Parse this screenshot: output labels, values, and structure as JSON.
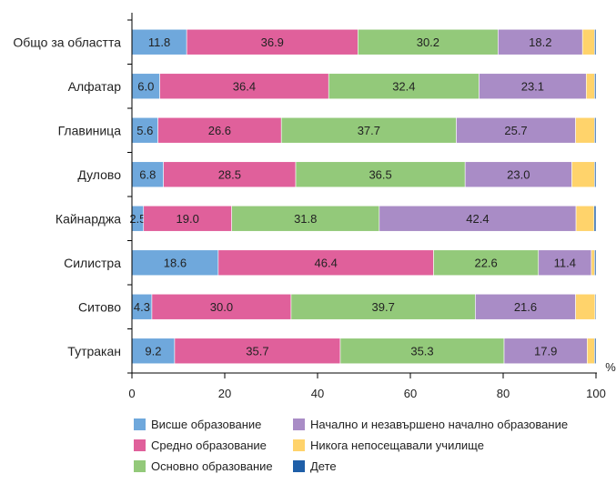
{
  "chart_data": {
    "type": "bar",
    "orientation": "horizontal",
    "stacked": true,
    "unit": "%",
    "categories": [
      "Общо за областта",
      "Алфатар",
      "Главиница",
      "Дулово",
      "Кайнарджа",
      "Силистра",
      "Ситово",
      "Тутракан"
    ],
    "series": [
      {
        "name": "Висше образование",
        "color": "#6fa8dc",
        "values": [
          11.8,
          6.0,
          5.6,
          6.8,
          2.5,
          18.6,
          4.3,
          9.2
        ],
        "labels": [
          "11.8",
          "6.0",
          "5.6",
          "6.8",
          "2.5",
          "18.6",
          "4.3",
          "9.2"
        ]
      },
      {
        "name": "Средно образование",
        "color": "#e0609b",
        "values": [
          36.9,
          36.4,
          26.6,
          28.5,
          19.0,
          46.4,
          30.0,
          35.7
        ],
        "labels": [
          "36.9",
          "36.4",
          "26.6",
          "28.5",
          "19.0",
          "46.4",
          "30.0",
          "35.7"
        ]
      },
      {
        "name": "Основно образование",
        "color": "#93c97a",
        "values": [
          30.2,
          32.4,
          37.7,
          36.5,
          31.8,
          22.6,
          39.7,
          35.3
        ],
        "labels": [
          "30.2",
          "32.4",
          "37.7",
          "36.5",
          "31.8",
          "22.6",
          "39.7",
          "35.3"
        ]
      },
      {
        "name": "Начално и незавършено начално образование",
        "color": "#a98cc6",
        "values": [
          18.2,
          23.1,
          25.7,
          23.0,
          42.4,
          11.4,
          21.6,
          17.9
        ],
        "labels": [
          "18.2",
          "23.1",
          "25.7",
          "23.0",
          "42.4",
          "11.4",
          "21.6",
          "17.9"
        ]
      },
      {
        "name": "Никога непосещавали училище",
        "color": "#ffd36b",
        "values": [
          2.6,
          1.8,
          4.1,
          4.9,
          3.9,
          0.7,
          4.2,
          1.6
        ],
        "labels": [
          "",
          "",
          "",
          "",
          "",
          "",
          "",
          ""
        ]
      },
      {
        "name": "Дете",
        "color": "#1f5fa8",
        "values": [
          0.3,
          0.3,
          0.3,
          0.3,
          0.4,
          0.3,
          0.2,
          0.3
        ],
        "labels": [
          "",
          "",
          "",
          "",
          "",
          "",
          "",
          ""
        ]
      }
    ],
    "x_ticks": [
      "0",
      "20",
      "40",
      "60",
      "80",
      "100"
    ],
    "xlim": [
      0,
      100
    ],
    "grid": false,
    "legend_position": "bottom"
  }
}
